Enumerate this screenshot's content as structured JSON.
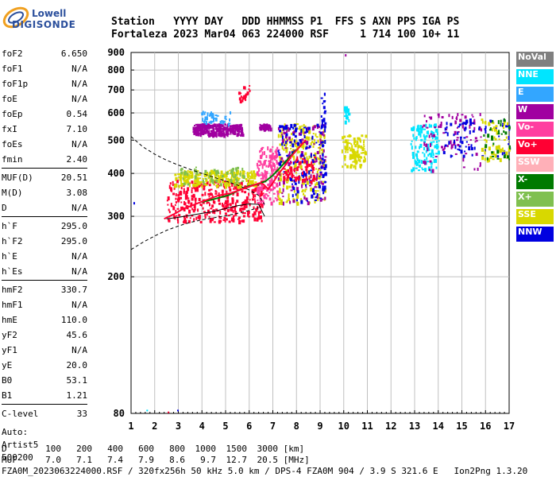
{
  "logo": {
    "top": "Lowell",
    "bottom": "DIGISONDE"
  },
  "header": {
    "line1": "Station   YYYY DAY   DDD HHMMSS P1  FFS S AXN PPS IGA PS",
    "line2": "Fortaleza 2023 Mar04 063 224000 RSF     1 714 100 10+ 11"
  },
  "params": [
    {
      "name": "foF2",
      "value": "6.650"
    },
    {
      "name": "foF1",
      "value": "N/A"
    },
    {
      "name": "foF1p",
      "value": "N/A"
    },
    {
      "name": "foE",
      "value": "N/A"
    },
    {
      "name": "foEp",
      "value": "0.54"
    },
    {
      "name": "fxI",
      "value": "7.10"
    },
    {
      "name": "foEs",
      "value": "N/A"
    },
    {
      "name": "fmin",
      "value": "2.40"
    },
    {
      "name": "MUF(D)",
      "value": "20.51"
    },
    {
      "name": "M(D)",
      "value": "3.08"
    },
    {
      "name": "D",
      "value": "N/A"
    },
    {
      "name": "h`F",
      "value": "295.0"
    },
    {
      "name": "h`F2",
      "value": "295.0"
    },
    {
      "name": "h`E",
      "value": "N/A"
    },
    {
      "name": "h`Es",
      "value": "N/A"
    },
    {
      "name": "hmF2",
      "value": "330.7"
    },
    {
      "name": "hmF1",
      "value": "N/A"
    },
    {
      "name": "hmE",
      "value": "110.0"
    },
    {
      "name": "yF2",
      "value": "45.6"
    },
    {
      "name": "yF1",
      "value": "N/A"
    },
    {
      "name": "yE",
      "value": "20.0"
    },
    {
      "name": "B0",
      "value": "53.1"
    },
    {
      "name": "B1",
      "value": "1.21"
    },
    {
      "name": "C-level",
      "value": "33"
    }
  ],
  "auto": {
    "line1": "Auto:",
    "line2": "Artist5",
    "line3": "500200"
  },
  "legend": [
    {
      "label": "NoVal",
      "color": "#808080"
    },
    {
      "label": "NNE",
      "color": "#00e5ff"
    },
    {
      "label": "E",
      "color": "#33a6ff"
    },
    {
      "label": "W",
      "color": "#a000a0"
    },
    {
      "label": "Vo-",
      "color": "#ff3fa0"
    },
    {
      "label": "Vo+",
      "color": "#ff0033"
    },
    {
      "label": "SSW",
      "color": "#ffb0b8"
    },
    {
      "label": "X-",
      "color": "#007a00"
    },
    {
      "label": "X+",
      "color": "#80c050"
    },
    {
      "label": "SSE",
      "color": "#d8d800"
    },
    {
      "label": "NNW",
      "color": "#0000e0"
    }
  ],
  "footer": {
    "d_label": "D",
    "d_values": [
      "100",
      "200",
      "400",
      "600",
      "800",
      "1000",
      "1500",
      "3000"
    ],
    "d_unit": "[km]",
    "muf_label": "MUF",
    "muf_values": [
      "7.0",
      "7.1",
      "7.4",
      "7.9",
      "8.6",
      "9.7",
      "12.7",
      "20.5"
    ],
    "muf_unit": "[MHz]",
    "line3": "FZA0M_2023063224000.RSF / 320fx256h 50 kHz 5.0 km / DPS-4 FZA0M 904 / 3.9 S 321.6 E   Ion2Png 1.3.20"
  },
  "chart_data": {
    "type": "scatter",
    "xlim": [
      1,
      17
    ],
    "ylim": [
      80,
      900
    ],
    "y_scale": "log",
    "x_ticks": [
      1,
      2,
      3,
      4,
      5,
      6,
      7,
      8,
      9,
      10,
      11,
      12,
      13,
      14,
      15,
      16,
      17
    ],
    "y_ticks": [
      80,
      200,
      300,
      400,
      500,
      600,
      700,
      800,
      900
    ],
    "grid": true,
    "legend_position": "right",
    "clusters": [
      {
        "x": [
          2.5,
          6.6
        ],
        "y": [
          290,
          385
        ],
        "color": "#ff0033",
        "n": 380
      },
      {
        "x": [
          2.8,
          6.3
        ],
        "y": [
          370,
          410
        ],
        "color": "#d8d800",
        "n": 220
      },
      {
        "x": [
          3.0,
          5.8
        ],
        "y": [
          370,
          420
        ],
        "color": "#80c050",
        "n": 60
      },
      {
        "x": [
          3.6,
          5.7
        ],
        "y": [
          520,
          560
        ],
        "color": "#a000a0",
        "n": 260
      },
      {
        "x": [
          3.9,
          5.2
        ],
        "y": [
          560,
          610
        ],
        "color": "#33a6ff",
        "n": 40
      },
      {
        "x": [
          6.3,
          7.2
        ],
        "y": [
          330,
          480
        ],
        "color": "#ff3fa0",
        "n": 160
      },
      {
        "x": [
          6.4,
          6.9
        ],
        "y": [
          540,
          560
        ],
        "color": "#a000a0",
        "n": 40
      },
      {
        "x": [
          7.2,
          9.2
        ],
        "y": [
          330,
          560
        ],
        "color": "#d8d800",
        "n": 240
      },
      {
        "x": [
          7.2,
          9.2
        ],
        "y": [
          330,
          560
        ],
        "color": "#a000a0",
        "n": 130
      },
      {
        "x": [
          7.2,
          9.2
        ],
        "y": [
          330,
          560
        ],
        "color": "#0000e0",
        "n": 110
      },
      {
        "x": [
          7.4,
          8.8
        ],
        "y": [
          380,
          450
        ],
        "color": "#ff0033",
        "n": 70
      },
      {
        "x": [
          9.0,
          9.2
        ],
        "y": [
          350,
          700
        ],
        "color": "#0000e0",
        "n": 40
      },
      {
        "x": [
          9.9,
          10.9
        ],
        "y": [
          420,
          520
        ],
        "color": "#d8d800",
        "n": 110
      },
      {
        "x": [
          10.0,
          10.2
        ],
        "y": [
          560,
          630
        ],
        "color": "#00e5ff",
        "n": 25
      },
      {
        "x": [
          12.8,
          14.0
        ],
        "y": [
          410,
          560
        ],
        "color": "#00e5ff",
        "n": 120
      },
      {
        "x": [
          13.3,
          15.8
        ],
        "y": [
          410,
          600
        ],
        "color": "#a000a0",
        "n": 90
      },
      {
        "x": [
          14.2,
          17.0
        ],
        "y": [
          450,
          580
        ],
        "color": "#0000e0",
        "n": 70
      },
      {
        "x": [
          15.8,
          17.0
        ],
        "y": [
          440,
          580
        ],
        "color": "#d8d800",
        "n": 50
      },
      {
        "x": [
          15.8,
          17.0
        ],
        "y": [
          440,
          580
        ],
        "color": "#007a00",
        "n": 30
      },
      {
        "x": [
          5.5,
          6.0
        ],
        "y": [
          650,
          730
        ],
        "color": "#ff0033",
        "n": 18
      }
    ],
    "profile_fit": {
      "x": [
        2.4,
        2.8,
        3.2,
        3.7,
        4.2,
        4.7,
        5.2,
        5.7,
        6.1,
        6.45,
        6.6,
        6.8,
        7.0,
        7.2,
        7.5,
        7.8,
        8.1,
        8.4
      ],
      "y": [
        295,
        304,
        315,
        325,
        335,
        345,
        350,
        360,
        368,
        375,
        372,
        360,
        375,
        395,
        420,
        450,
        475,
        500
      ],
      "color": "#ff0033"
    },
    "profile_fit_x": {
      "x": [
        4.0,
        4.6,
        5.1,
        5.6,
        6.0,
        6.4,
        6.7,
        7.0,
        7.3,
        7.7,
        8.0
      ],
      "y": [
        330,
        338,
        345,
        358,
        368,
        372,
        380,
        395,
        415,
        445,
        470
      ],
      "color": "#007a00"
    },
    "profile_curve": {
      "x": [
        2.5,
        3.0,
        3.5,
        4.0,
        4.5,
        5.0,
        5.5,
        6.0,
        6.4,
        6.65
      ],
      "y": [
        295,
        298,
        302,
        306,
        310,
        316,
        322,
        326,
        325,
        300
      ],
      "color": "#000000"
    },
    "dashed_curve_upper": {
      "x": [
        1.0,
        1.5,
        2.0,
        2.5,
        3.0,
        3.5,
        4.0,
        4.5,
        5.0,
        5.5,
        6.0,
        6.4,
        6.65
      ],
      "y": [
        512,
        478,
        455,
        437,
        423,
        411,
        400,
        390,
        380,
        370,
        358,
        345,
        325
      ]
    },
    "dashed_curve_lower": {
      "x": [
        1.0,
        1.5,
        2.0,
        2.5,
        3.0,
        3.5,
        4.0,
        4.5,
        5.0,
        5.5,
        6.0,
        6.4
      ],
      "y": [
        240,
        252,
        263,
        273,
        281,
        288,
        293,
        297,
        301,
        306,
        312,
        318
      ]
    }
  }
}
